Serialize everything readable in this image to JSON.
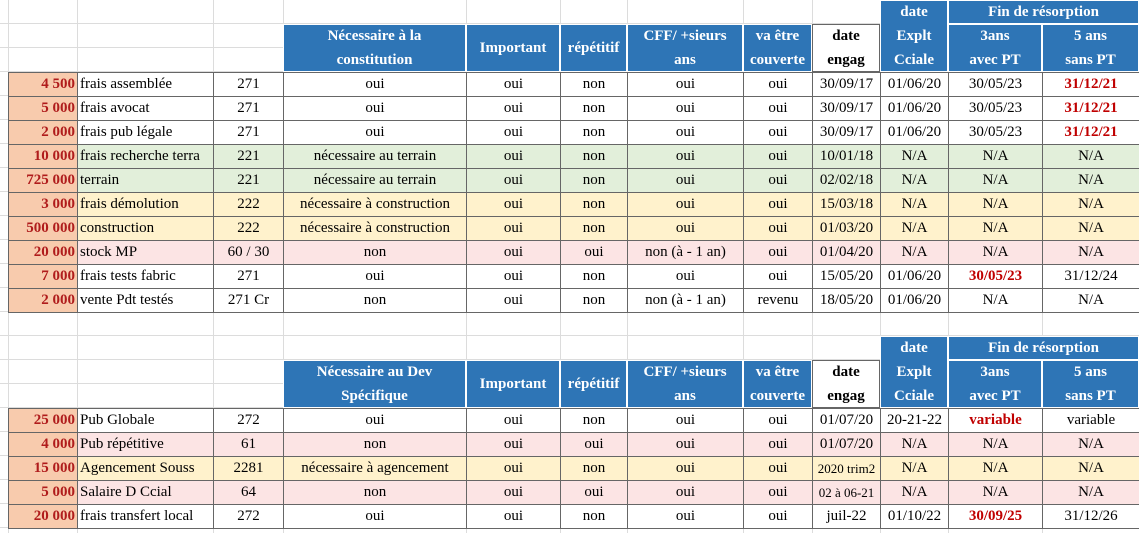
{
  "tables": [
    {
      "headers": {
        "necessity": [
          "Nécessaire à la",
          "constitution"
        ],
        "important": "Important",
        "repetitive": "répétitif",
        "cff": [
          "CFF/ +sieurs",
          "ans"
        ],
        "covered": [
          "va être",
          "couverte"
        ],
        "date_engag": [
          "date",
          "engag"
        ],
        "date_explt": [
          "date",
          "Explt",
          "Cciale"
        ],
        "resorption": "Fin de résorption",
        "with_pt": [
          "3ans",
          "avec PT"
        ],
        "without_pt": [
          "5 ans",
          "sans PT"
        ]
      },
      "rows": [
        {
          "fill": "#ffffff",
          "cells": [
            "4 500",
            "frais assemblée",
            "271",
            "oui",
            "oui",
            "non",
            "oui",
            "oui",
            "30/09/17",
            "01/06/20",
            "30/05/23",
            {
              "text": "31/12/21",
              "color": "#c00000"
            }
          ]
        },
        {
          "fill": "#ffffff",
          "cells": [
            "5 000",
            "frais avocat",
            "271",
            "oui",
            "oui",
            "non",
            "oui",
            "oui",
            "30/09/17",
            "01/06/20",
            "30/05/23",
            {
              "text": "31/12/21",
              "color": "#c00000"
            }
          ]
        },
        {
          "fill": "#ffffff",
          "cells": [
            "2 000",
            "frais pub légale",
            "271",
            "oui",
            "oui",
            "non",
            "oui",
            "oui",
            "30/09/17",
            "01/06/20",
            "30/05/23",
            {
              "text": "31/12/21",
              "color": "#c00000"
            }
          ]
        },
        {
          "fill": "#e2efda",
          "cells": [
            "10 000",
            "frais recherche terra",
            "221",
            "nécessaire au terrain",
            "oui",
            "non",
            "oui",
            "oui",
            "10/01/18",
            "N/A",
            "N/A",
            "N/A"
          ]
        },
        {
          "fill": "#e2efda",
          "cells": [
            "725 000",
            "terrain",
            "221",
            "nécessaire au terrain",
            "oui",
            "non",
            "oui",
            "oui",
            "02/02/18",
            "N/A",
            "N/A",
            "N/A"
          ]
        },
        {
          "fill": "#fff2cc",
          "cells": [
            "3 000",
            "frais démolution",
            "222",
            "nécessaire à construction",
            "oui",
            "non",
            "oui",
            "oui",
            "15/03/18",
            "N/A",
            "N/A",
            "N/A"
          ]
        },
        {
          "fill": "#fff2cc",
          "cells": [
            "500 000",
            "construction",
            "222",
            "nécessaire à construction",
            "oui",
            "non",
            "oui",
            "oui",
            "01/03/20",
            "N/A",
            "N/A",
            "N/A"
          ]
        },
        {
          "fill": "#fce4e4",
          "cells": [
            "20 000",
            "stock MP",
            "60 / 30",
            "non",
            "oui",
            "oui",
            "non (à - 1 an)",
            "oui",
            "01/04/20",
            "N/A",
            "N/A",
            "N/A"
          ]
        },
        {
          "fill": "#ffffff",
          "cells": [
            "7 000",
            "frais tests fabric",
            "271",
            "oui",
            "oui",
            "non",
            "oui",
            "oui",
            "15/05/20",
            "01/06/20",
            {
              "text": "30/05/23",
              "color": "#c00000"
            },
            "31/12/24"
          ]
        },
        {
          "fill": "#ffffff",
          "cells": [
            "2 000",
            "vente Pdt testés",
            "271 Cr",
            "non",
            "oui",
            "non",
            "non (à - 1 an)",
            "revenu",
            "18/05/20",
            "01/06/20",
            "N/A",
            "N/A"
          ]
        }
      ]
    },
    {
      "headers": {
        "necessity": [
          "Nécessaire au Dev",
          "Spécifique"
        ],
        "important": "Important",
        "repetitive": "répétitif",
        "cff": [
          "CFF/ +sieurs",
          "ans"
        ],
        "covered": [
          "va être",
          "couverte"
        ],
        "date_engag": [
          "date",
          "engag"
        ],
        "date_explt": [
          "date",
          "Explt",
          "Cciale"
        ],
        "resorption": "Fin de résorption",
        "with_pt": [
          "3ans",
          "avec PT"
        ],
        "without_pt": [
          "5 ans",
          "sans PT"
        ]
      },
      "rows": [
        {
          "fill": "#ffffff",
          "cells": [
            "25 000",
            "Pub Globale",
            "272",
            "oui",
            "oui",
            "non",
            "oui",
            "oui",
            "01/07/20",
            "20-21-22",
            {
              "text": "variable",
              "color": "#c00000"
            },
            "variable"
          ]
        },
        {
          "fill": "#fce4e4",
          "cells": [
            "4 000",
            "Pub répétitive",
            "61",
            "non",
            "oui",
            "oui",
            "oui",
            "oui",
            "01/07/20",
            "N/A",
            "N/A",
            "N/A"
          ]
        },
        {
          "fill": "#fff2cc",
          "cells": [
            "15 000",
            "Agencement Souss",
            "2281",
            "nécessaire à agencement",
            "oui",
            "non",
            "oui",
            "oui",
            "2020 trim2",
            "N/A",
            "N/A",
            "N/A"
          ]
        },
        {
          "fill": "#fce4e4",
          "cells": [
            "5 000",
            "Salaire D Ccial",
            "64",
            "non",
            "oui",
            "oui",
            "oui",
            "oui",
            "02 à 06-21",
            "N/A",
            "N/A",
            "N/A"
          ]
        },
        {
          "fill": "#ffffff",
          "cells": [
            "20 000",
            "frais transfert local",
            "272",
            "oui",
            "oui",
            "non",
            "oui",
            "oui",
            "juil-22",
            "01/10/22",
            {
              "text": "30/09/25",
              "color": "#c00000"
            },
            "31/12/26"
          ]
        }
      ]
    }
  ]
}
